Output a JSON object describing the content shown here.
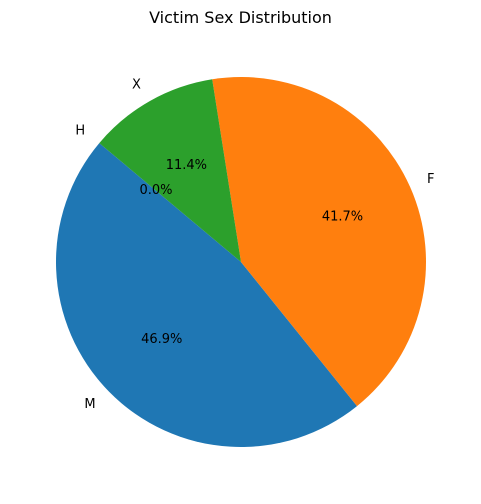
{
  "chart_data": {
    "type": "pie",
    "title": "Victim Sex Distribution",
    "categories": [
      "M",
      "F",
      "X",
      "H"
    ],
    "values": [
      46.9,
      41.7,
      11.4,
      0.0
    ],
    "percent_labels": [
      "46.9%",
      "41.7%",
      "11.4%",
      "0.0%"
    ],
    "colors": [
      "#1f77b4",
      "#ff7f0e",
      "#2ca02c",
      "#d62728"
    ],
    "start_angle_deg": 140,
    "direction": "counterclockwise",
    "legend": "none"
  }
}
